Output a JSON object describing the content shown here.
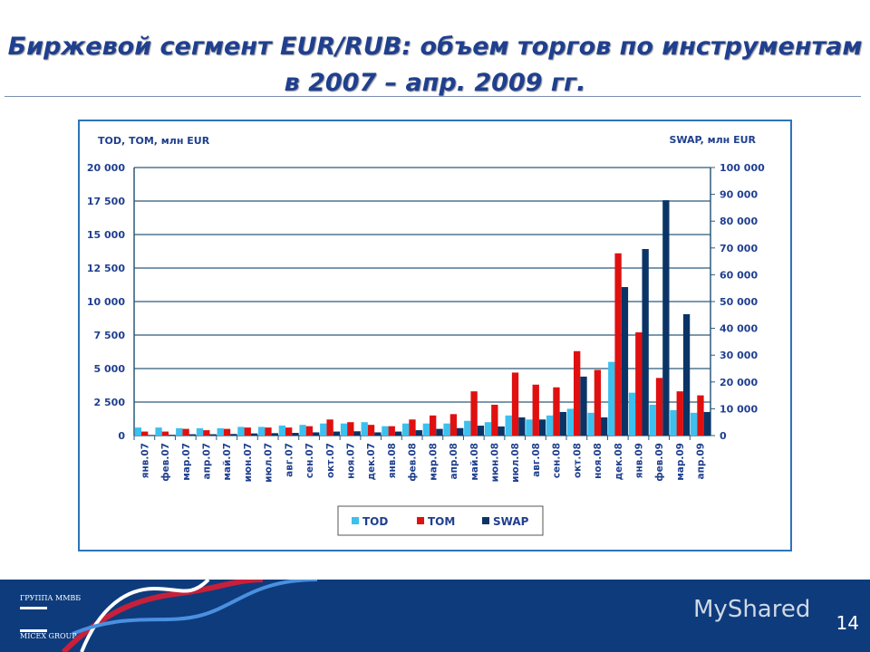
{
  "title": {
    "line1": "Биржевой сегмент EUR/RUB: объем торгов по инструментам",
    "line2": "в 2007 – апр. 2009 гг."
  },
  "footer": {
    "logo_top": "ГРУППА ММВБ",
    "logo_bottom": "MICEX GROUP",
    "watermark": "MyShared",
    "page": "14"
  },
  "chart_data": {
    "type": "bar",
    "left_axis_label": "TOD, TOM, млн EUR",
    "right_axis_label": "SWAP, млн EUR",
    "ylim_left": [
      0,
      20000
    ],
    "yticks_left": [
      "0",
      "2 500",
      "5 000",
      "7 500",
      "10 000",
      "12 500",
      "15 000",
      "17 500",
      "20 000"
    ],
    "ylim_right": [
      0,
      100000
    ],
    "yticks_right": [
      "0",
      "10 000",
      "20 000",
      "30 000",
      "40 000",
      "50 000",
      "60 000",
      "70 000",
      "80 000",
      "90 000",
      "100 000"
    ],
    "grid": true,
    "legend": "bottom",
    "categories": [
      "янв.07",
      "фев.07",
      "мар.07",
      "апр.07",
      "май.07",
      "июн.07",
      "июл.07",
      "авг.07",
      "сен.07",
      "окт.07",
      "ноя.07",
      "дек.07",
      "янв.08",
      "фев.08",
      "мар.08",
      "апр.08",
      "май.08",
      "июн.08",
      "июл.08",
      "авг.08",
      "сен.08",
      "окт.08",
      "ноя.08",
      "дек.08",
      "янв.09",
      "фев.09",
      "мар.09",
      "апр.09"
    ],
    "series": [
      {
        "name": "TOD",
        "axis": "left",
        "color": "#3cc0ee",
        "values": [
          600,
          600,
          550,
          550,
          550,
          650,
          650,
          750,
          800,
          900,
          900,
          1000,
          700,
          900,
          900,
          900,
          1100,
          1000,
          1500,
          1200,
          1500,
          2000,
          1700,
          5500,
          3200,
          2300,
          1900,
          1700
        ]
      },
      {
        "name": "TOM",
        "axis": "left",
        "color": "#e01010",
        "values": [
          300,
          300,
          500,
          400,
          500,
          600,
          600,
          600,
          700,
          1200,
          1000,
          800,
          700,
          1200,
          1500,
          1600,
          3300,
          2300,
          4700,
          3800,
          3600,
          6300,
          4900,
          13600,
          7700,
          4300,
          3300,
          3000
        ]
      },
      {
        "name": "SWAP",
        "axis": "right",
        "color": "#0b3466",
        "values": [
          200,
          300,
          500,
          500,
          600,
          800,
          900,
          1000,
          1200,
          1500,
          1600,
          1200,
          1500,
          2000,
          2500,
          2800,
          3700,
          3400,
          6800,
          6000,
          8800,
          22000,
          6800,
          55400,
          69600,
          87800,
          45300,
          8800
        ]
      }
    ]
  }
}
